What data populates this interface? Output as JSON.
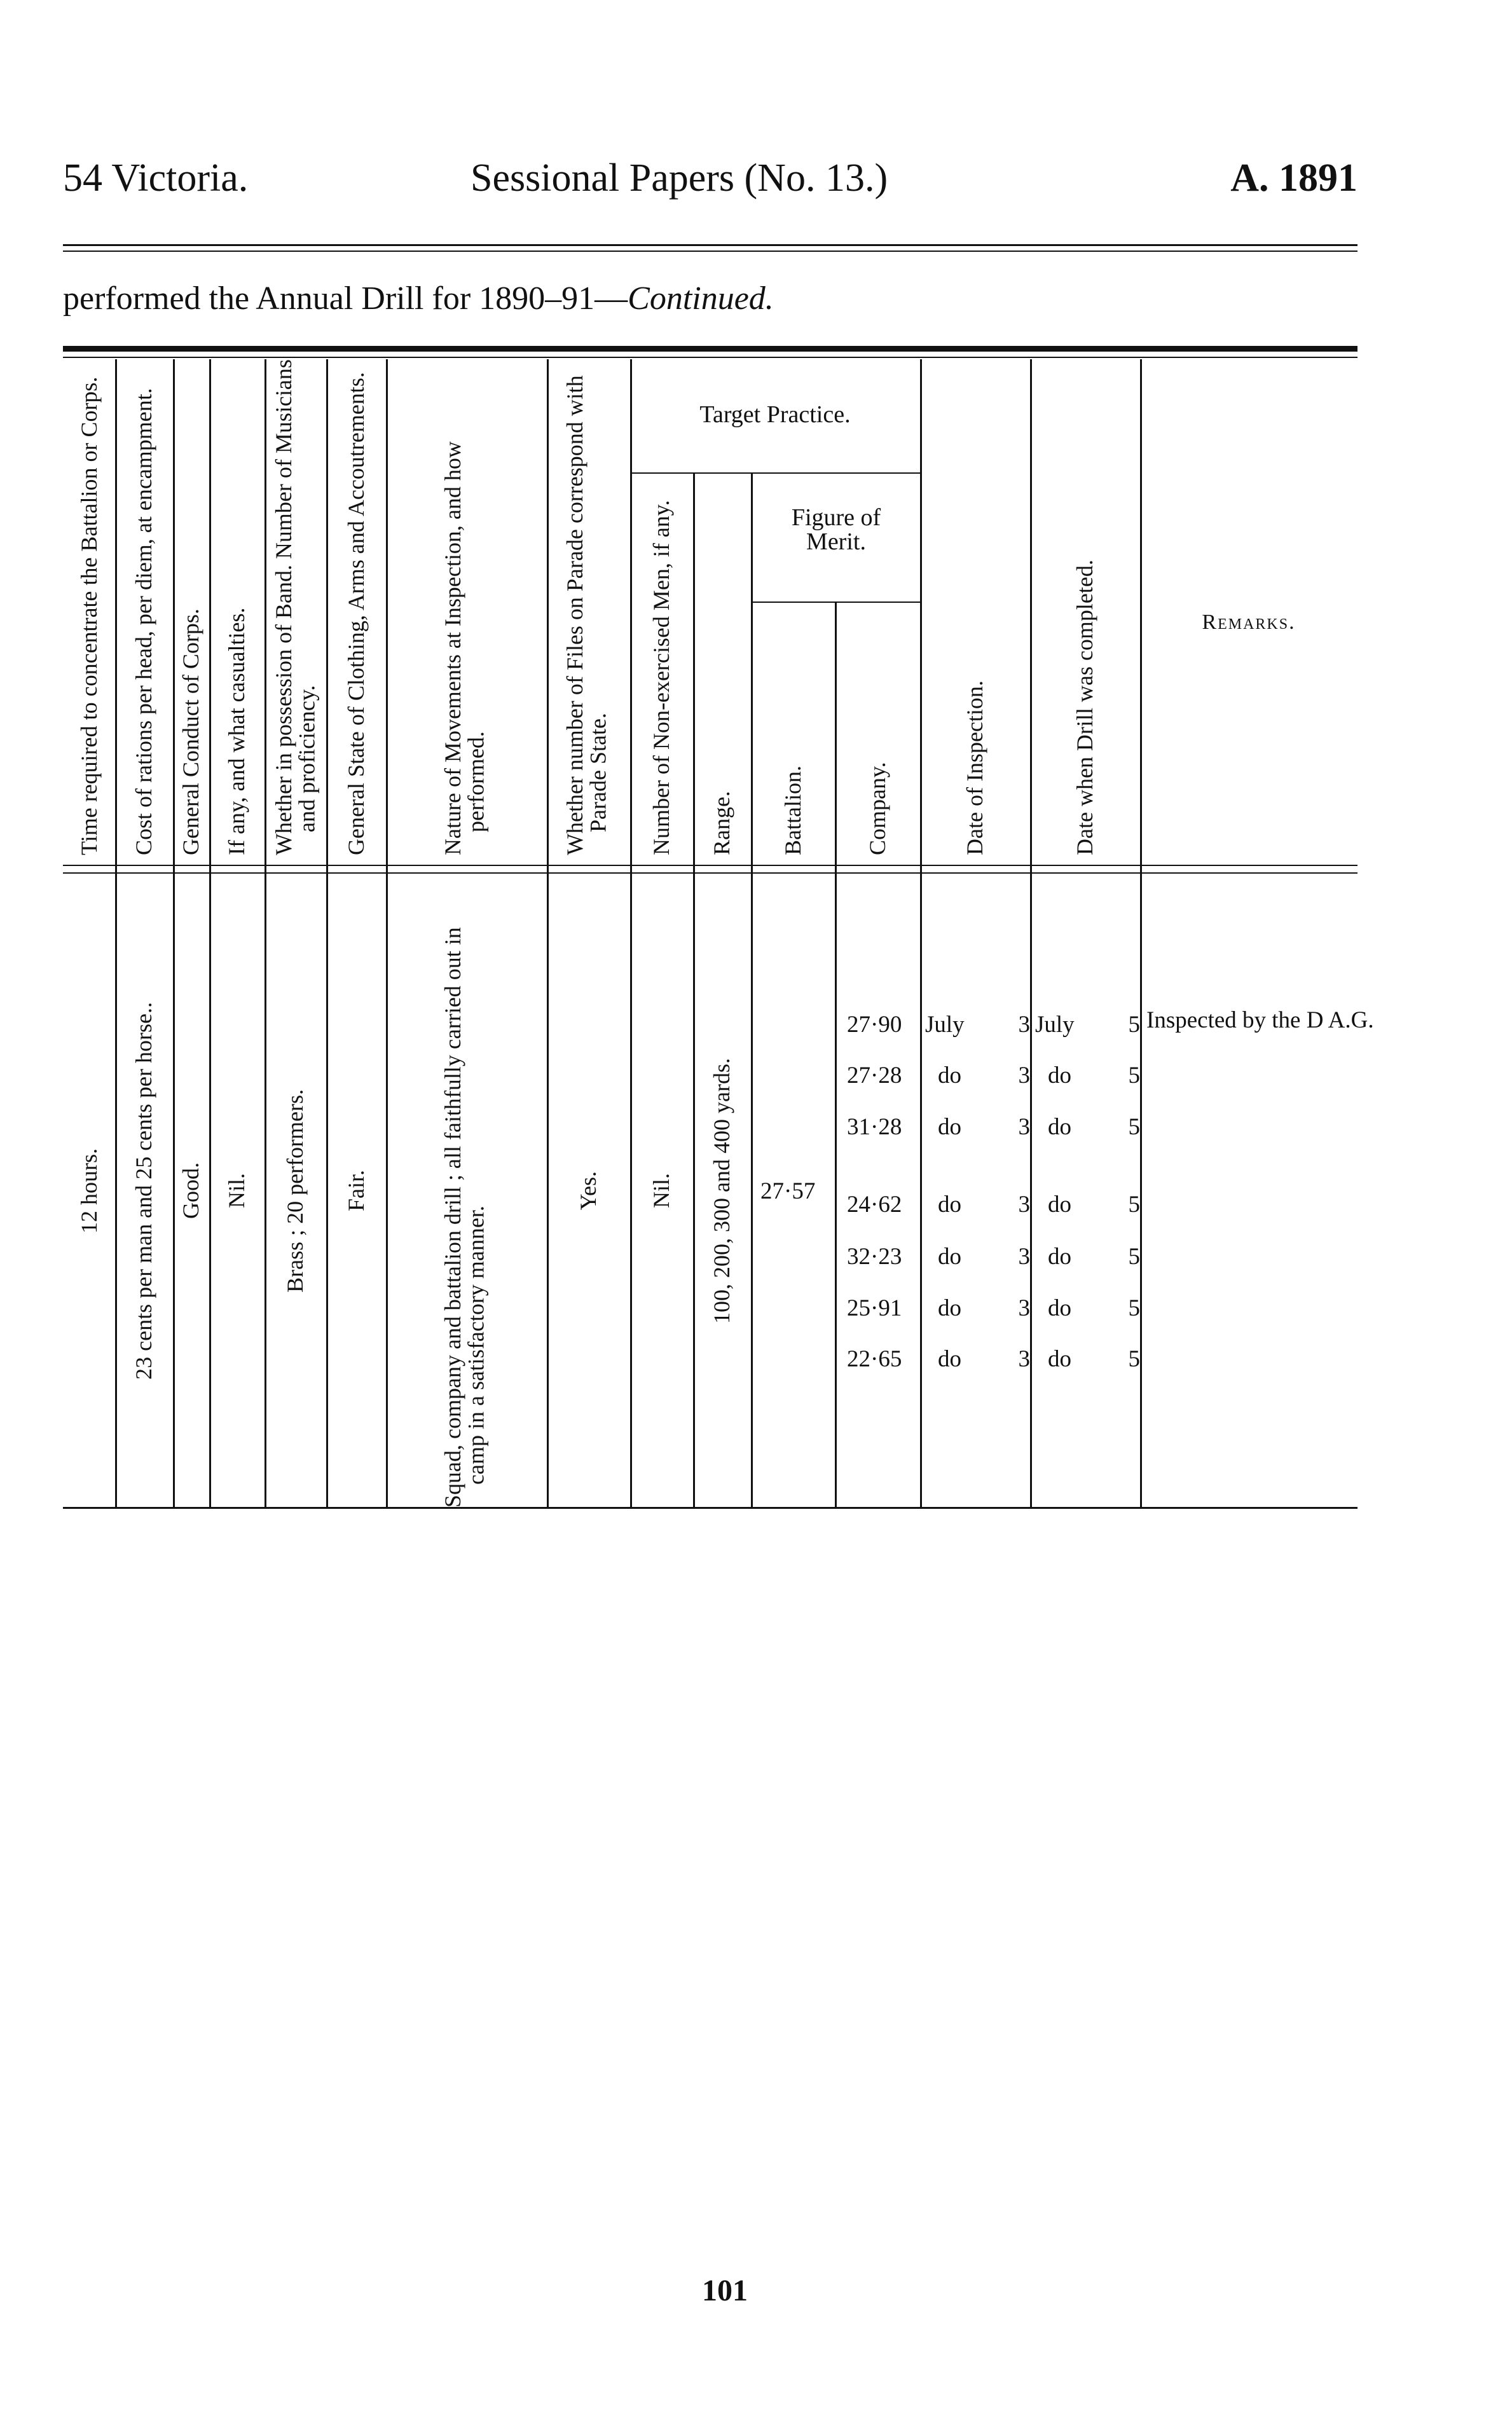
{
  "page_header": {
    "left": "54 Victoria.",
    "center": "Sessional Papers (No. 13.)",
    "right": "A. 1891"
  },
  "caption": {
    "text": "performed the Annual Drill for 1890–91—",
    "italic": "Continued."
  },
  "columns": {
    "time": "Time required to concentrate the Battalion or Corps.",
    "cost": "Cost of rations per head, per diem, at encampment.",
    "conduct": "General Conduct of Corps.",
    "casualties": "If any, and what casualties.",
    "band": "Whether in possession of Band. Number of Musicians and proficiency.",
    "clothing": "General State of Clothing, Arms and Accoutrements.",
    "movements": "Nature of Movements at Inspection, and how performed.",
    "files": "Whether number of Files on Parade correspond with Parade State.",
    "target_practice": "Target Practice.",
    "non_exercised": "Number of Non-exercised Men, if any.",
    "range": "Range.",
    "figure_of_merit": "Figure of Merit.",
    "battalion": "Battalion.",
    "company": "Company.",
    "date_inspection": "Date of Inspection.",
    "date_completed": "Date when Drill was completed.",
    "remarks": "Remarks."
  },
  "record": {
    "time": "12 hours.",
    "cost": "23 cents per man and 25 cents per horse..",
    "conduct": "Good.",
    "casualties": "Nil.",
    "band": "Brass ; 20 performers.",
    "clothing": "Fair.",
    "movements": "Squad, company and battalion drill ; all faithfully carried out in camp in a satisfactory manner.",
    "files": "Yes.",
    "non_exercised": "Nil.",
    "range": "100, 200, 300 and 400 yards.",
    "battalion_merit": "27·57",
    "remarks": "Inspected by the D A.G.",
    "rows": [
      {
        "company": "27·90",
        "insp_month": "July",
        "insp_day": "3",
        "comp_month": "July",
        "comp_day": "5"
      },
      {
        "company": "27·28",
        "insp_month": "do",
        "insp_day": "3",
        "comp_month": "do",
        "comp_day": "5"
      },
      {
        "company": "31·28",
        "insp_month": "do",
        "insp_day": "3",
        "comp_month": "do",
        "comp_day": "5"
      },
      {
        "company": "24·62",
        "insp_month": "do",
        "insp_day": "3",
        "comp_month": "do",
        "comp_day": "5"
      },
      {
        "company": "32·23",
        "insp_month": "do",
        "insp_day": "3",
        "comp_month": "do",
        "comp_day": "5"
      },
      {
        "company": "25·91",
        "insp_month": "do",
        "insp_day": "3",
        "comp_month": "do",
        "comp_day": "5"
      },
      {
        "company": "22·65",
        "insp_month": "do",
        "insp_day": "3",
        "comp_month": "do",
        "comp_day": "5"
      }
    ]
  },
  "page_number": "101"
}
